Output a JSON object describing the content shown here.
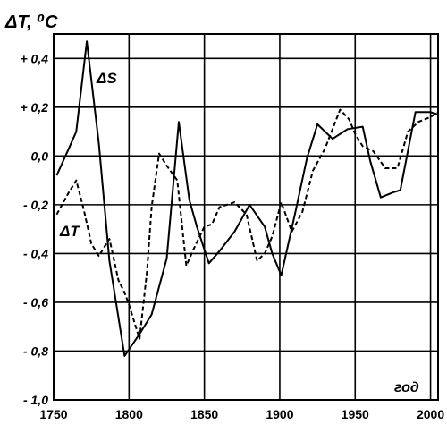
{
  "chart_data": {
    "type": "line",
    "title": "",
    "ylabel": "ΔT, ⁰C",
    "xlabel_inside": "год",
    "xlim": [
      1750,
      2005
    ],
    "ylim": [
      -1.0,
      0.5
    ],
    "grid": true,
    "x_ticks": [
      1750,
      1800,
      1850,
      1900,
      1950,
      2000
    ],
    "x_tick_labels": [
      "1750",
      "1800",
      "1850",
      "1900",
      "1950",
      "2000"
    ],
    "y_ticks": [
      0.4,
      0.2,
      0.0,
      -0.2,
      -0.4,
      -0.6,
      -0.8,
      -1.0
    ],
    "y_tick_labels": [
      "+ 0,4",
      "+ 0,2",
      "0,0",
      "- 0,2",
      "- 0,4",
      "- 0,6",
      "- 0,8",
      "- 1,0"
    ],
    "series": [
      {
        "name": "ΔS",
        "style": "solid",
        "color": "#000000",
        "x": [
          1752,
          1760,
          1765,
          1772,
          1780,
          1787,
          1797,
          1807,
          1815,
          1825,
          1833,
          1840,
          1845,
          1853,
          1860,
          1870,
          1880,
          1890,
          1895,
          1901,
          1910,
          1918,
          1925,
          1935,
          1945,
          1955,
          1960,
          1967,
          1975,
          1980,
          1990,
          2000,
          2005
        ],
        "y": [
          -0.08,
          0.03,
          0.1,
          0.47,
          0.05,
          -0.43,
          -0.82,
          -0.73,
          -0.65,
          -0.42,
          0.14,
          -0.18,
          -0.29,
          -0.44,
          -0.39,
          -0.31,
          -0.2,
          -0.29,
          -0.4,
          -0.49,
          -0.24,
          -0.01,
          0.13,
          0.07,
          0.11,
          0.12,
          -0.02,
          -0.17,
          -0.15,
          -0.14,
          0.18,
          0.18,
          0.17
        ]
      },
      {
        "name": "ΔT",
        "style": "dashed",
        "color": "#000000",
        "x": [
          1752,
          1760,
          1765,
          1770,
          1775,
          1780,
          1787,
          1793,
          1797,
          1800,
          1807,
          1812,
          1815,
          1820,
          1825,
          1832,
          1838,
          1843,
          1850,
          1855,
          1860,
          1870,
          1878,
          1885,
          1890,
          1895,
          1901,
          1908,
          1915,
          1922,
          1930,
          1940,
          1946,
          1950,
          1955,
          1962,
          1970,
          1978,
          1985,
          1992,
          2000,
          2005
        ],
        "y": [
          -0.24,
          -0.15,
          -0.1,
          -0.22,
          -0.36,
          -0.41,
          -0.34,
          -0.51,
          -0.56,
          -0.61,
          -0.75,
          -0.47,
          -0.21,
          0.01,
          -0.04,
          -0.1,
          -0.45,
          -0.38,
          -0.29,
          -0.28,
          -0.21,
          -0.19,
          -0.24,
          -0.43,
          -0.4,
          -0.33,
          -0.19,
          -0.31,
          -0.23,
          -0.06,
          0.03,
          0.19,
          0.15,
          0.09,
          0.04,
          0.02,
          -0.05,
          -0.05,
          0.1,
          0.14,
          0.16,
          0.18
        ]
      }
    ]
  }
}
